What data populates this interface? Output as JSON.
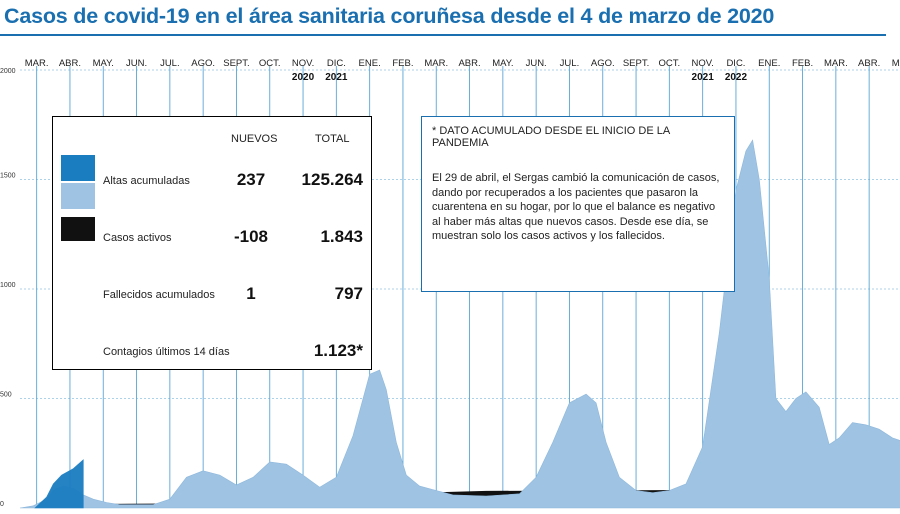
{
  "title": "Casos de covid-19 en el área sanitaria coruñesa desde el 4 de marzo de 2020",
  "stats": {
    "header_new": "NUEVOS",
    "header_total": "TOTAL",
    "rows": [
      {
        "label": "Altas acumuladas",
        "new": "237",
        "total": "125.264"
      },
      {
        "label": "Casos activos",
        "new": "-108",
        "total": "1.843"
      },
      {
        "label": "Fallecidos acumulados",
        "new": "1",
        "total": "797"
      },
      {
        "label": "Contagios últimos 14 días",
        "new": "",
        "total": "1.123*"
      }
    ]
  },
  "note": {
    "heading": "* DATO ACUMULADO DESDE EL INICIO DE LA PANDEMIA",
    "body": "El 29 de abril, el Sergas cambió la comunicación de casos, dando por recuperados a los pacientes que pasaron la cuarentena en su hogar, por lo que el balance es negativo al haber más altas que nuevos casos. Desde ese día, se muestran solo los casos activos y los fallecidos."
  },
  "colors": {
    "accent": "#1a6fb0",
    "altas_dark": "#1a7dc0",
    "active_light": "#9ec3e3",
    "deaths": "#111111",
    "gridlines": "#5aa5d6"
  },
  "chart_data": {
    "type": "area",
    "title": "Casos de covid-19 en el área sanitaria coruñesa desde el 4 de marzo de 2020",
    "x_unit": "months since start (0 = early March 2020)",
    "ylim": [
      0,
      2000
    ],
    "y_ticks": [
      0,
      500,
      1000,
      1500,
      2000
    ],
    "grid": true,
    "months": [
      "MAR.",
      "ABR.",
      "MAY.",
      "JUN.",
      "JUL.",
      "AGO.",
      "SEPT.",
      "OCT.",
      "NOV.",
      "DIC.",
      "ENE.",
      "FEB.",
      "MAR.",
      "ABR.",
      "MAY.",
      "JUN.",
      "JUL.",
      "AGO.",
      "SEPT.",
      "OCT.",
      "NOV.",
      "DIC.",
      "ENE.",
      "FEB.",
      "MAR.",
      "ABR.",
      "MAY."
    ],
    "year_labels": [
      {
        "month_index": 8,
        "label": "2020"
      },
      {
        "month_index": 9,
        "label": "2021"
      },
      {
        "month_index": 20,
        "label": "2021"
      },
      {
        "month_index": 21,
        "label": "2022"
      }
    ],
    "series": [
      {
        "name": "Casos activos",
        "x": [
          0,
          0.4,
          0.8,
          1.0,
          1.3,
          1.6,
          1.9,
          2.2,
          2.6,
          3.0,
          4.0,
          4.5,
          5.0,
          5.5,
          6.0,
          6.5,
          7.0,
          7.5,
          8.0,
          8.5,
          9.0,
          9.5,
          10.0,
          10.5,
          10.8,
          11.0,
          11.3,
          11.6,
          12.0,
          12.5,
          13.0,
          14.0,
          15.0,
          15.5,
          16.0,
          16.5,
          17.0,
          17.3,
          17.6,
          18.0,
          18.5,
          19.0,
          19.5,
          20.0,
          20.5,
          21.0,
          21.5,
          21.8,
          22.0,
          22.2,
          22.5,
          22.7,
          23.0,
          23.3,
          23.6,
          24.0,
          24.3,
          24.6,
          25.0,
          25.4,
          25.8,
          26.2,
          26.6
        ],
        "y": [
          0,
          10,
          40,
          80,
          100,
          90,
          60,
          40,
          25,
          15,
          15,
          40,
          140,
          170,
          150,
          105,
          140,
          210,
          200,
          150,
          95,
          140,
          330,
          610,
          630,
          540,
          300,
          150,
          100,
          80,
          60,
          55,
          65,
          140,
          300,
          480,
          520,
          480,
          300,
          140,
          80,
          70,
          80,
          110,
          280,
          800,
          1450,
          1630,
          1680,
          1500,
          1050,
          500,
          440,
          500,
          530,
          460,
          290,
          320,
          390,
          380,
          360,
          320,
          300
        ]
      },
      {
        "name": "Altas acumuladas",
        "x": [
          0.45,
          0.8,
          1.0,
          1.25,
          1.6,
          1.9
        ],
        "y": [
          0,
          50,
          110,
          150,
          180,
          220
        ]
      },
      {
        "name": "Fallecidos acumulados",
        "x": [
          0,
          1.0,
          2.0,
          4.0,
          6.0,
          8.0,
          10.0,
          11.0,
          12.0,
          14.0,
          17.0,
          20.0,
          22.0,
          24.0,
          26.6
        ],
        "y": [
          0,
          15,
          18,
          20,
          22,
          30,
          40,
          50,
          70,
          78,
          80,
          82,
          85,
          88,
          90
        ]
      }
    ]
  }
}
